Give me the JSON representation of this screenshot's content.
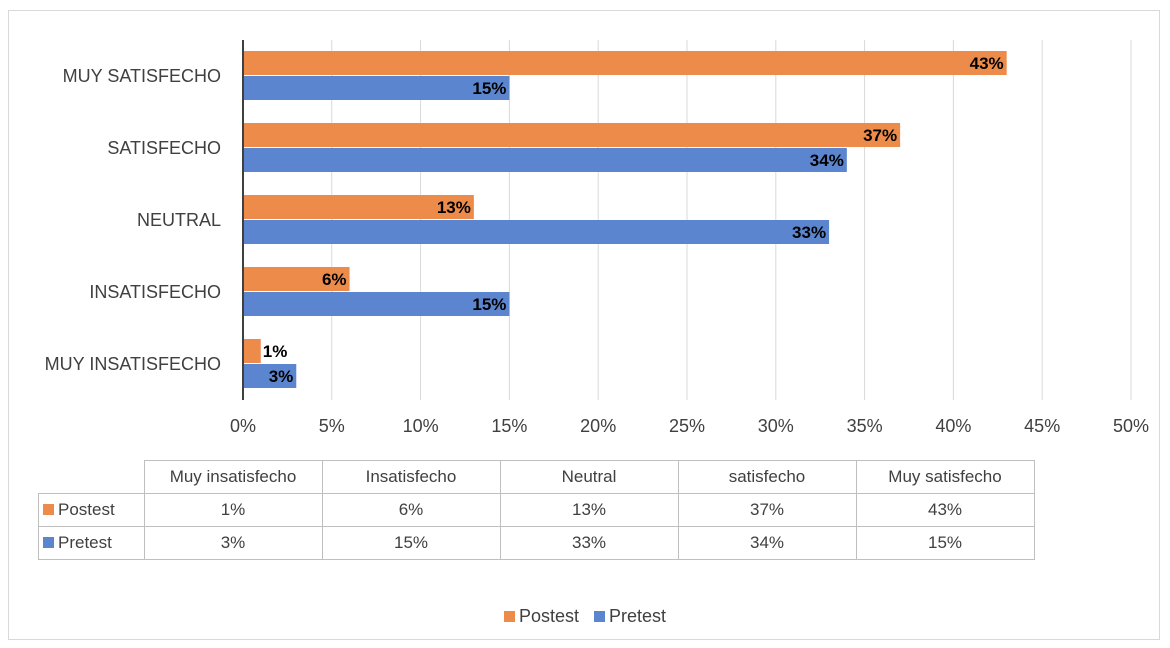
{
  "chart_data": {
    "type": "bar",
    "orientation": "horizontal",
    "categories": [
      "MUY INSATISFECHO",
      "INSATISFECHO",
      "NEUTRAL",
      "SATISFECHO",
      "MUY SATISFECHO"
    ],
    "series": [
      {
        "name": "Postest",
        "values": [
          1,
          6,
          13,
          37,
          43
        ],
        "color": "#ED8B4A"
      },
      {
        "name": "Pretest",
        "values": [
          3,
          15,
          33,
          34,
          15
        ],
        "color": "#5B85CF"
      }
    ],
    "xlim": [
      0,
      50
    ],
    "x_ticks": [
      "0%",
      "5%",
      "10%",
      "15%",
      "20%",
      "25%",
      "30%",
      "35%",
      "40%",
      "45%",
      "50%"
    ],
    "value_suffix": "%",
    "grid": "vertical",
    "legend_position": "bottom",
    "data_table": {
      "columns": [
        "Muy insatisfecho",
        "Insatisfecho",
        "Neutral",
        "satisfecho",
        "Muy satisfecho"
      ],
      "rows": [
        {
          "label": "Postest",
          "values": [
            "1%",
            "6%",
            "13%",
            "37%",
            "43%"
          ]
        },
        {
          "label": "Pretest",
          "values": [
            "3%",
            "15%",
            "33%",
            "34%",
            "15%"
          ]
        }
      ]
    }
  }
}
